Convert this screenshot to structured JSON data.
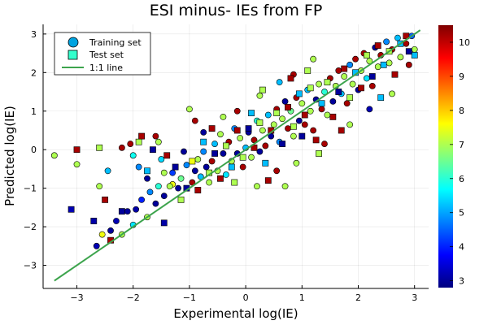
{
  "chart_data": {
    "type": "scatter",
    "title": "ESI minus- IEs from FP",
    "xlabel": "Experimental log(IE)",
    "ylabel": "Predicted log(IE)",
    "xlim": [
      -3.6,
      3.25
    ],
    "ylim": [
      -3.6,
      3.25
    ],
    "xticks": [
      -3,
      -2,
      -1,
      0,
      1,
      2,
      3
    ],
    "yticks": [
      -3,
      -2,
      -1,
      0,
      1,
      2,
      3
    ],
    "grid": true,
    "legend_position": "top-left",
    "colorbar": {
      "range": [
        2.8,
        10.5
      ],
      "ticks": [
        3,
        4,
        5,
        6,
        7,
        8,
        9,
        10
      ],
      "colormap": "jet"
    },
    "series": [
      {
        "name": "Training set",
        "marker": "circle",
        "points": [
          [
            -3.4,
            -0.15,
            7.0
          ],
          [
            -3.0,
            -0.38,
            7.0
          ],
          [
            -2.6,
            -0.95,
            7.0
          ],
          [
            -2.45,
            -0.55,
            5.2
          ],
          [
            -2.2,
            0.05,
            10.2
          ],
          [
            -2.05,
            0.15,
            10.2
          ],
          [
            -1.9,
            -0.45,
            4.8
          ],
          [
            -1.75,
            -0.75,
            3.0
          ],
          [
            -1.6,
            0.35,
            10.2
          ],
          [
            -1.5,
            -0.25,
            5.4
          ],
          [
            -1.45,
            -0.6,
            7.0
          ],
          [
            -1.3,
            -0.9,
            7.5
          ],
          [
            -2.65,
            -2.5,
            3.2
          ],
          [
            -2.55,
            -2.2,
            7.5
          ],
          [
            -2.4,
            -2.1,
            3.0
          ],
          [
            -2.3,
            -1.85,
            3.2
          ],
          [
            -2.2,
            -2.2,
            7.0
          ],
          [
            -2.1,
            -1.6,
            3.0
          ],
          [
            -2.0,
            -1.95,
            5.5
          ],
          [
            -1.95,
            -1.55,
            3.1
          ],
          [
            -1.85,
            -1.3,
            4.0
          ],
          [
            -1.75,
            -1.75,
            7.0
          ],
          [
            -1.7,
            -1.1,
            4.8
          ],
          [
            -1.6,
            -1.4,
            3.0
          ],
          [
            -1.55,
            -0.95,
            6.0
          ],
          [
            -1.45,
            -1.2,
            3.0
          ],
          [
            -1.35,
            -0.95,
            7.0
          ],
          [
            -1.3,
            -0.6,
            4.2
          ],
          [
            -1.2,
            -1.0,
            3.0
          ],
          [
            -1.15,
            -0.75,
            6.5
          ],
          [
            -1.05,
            -0.4,
            4.8
          ],
          [
            -0.95,
            -0.85,
            10.2
          ],
          [
            -0.9,
            -0.55,
            3.0
          ],
          [
            -0.85,
            -0.25,
            7.0
          ],
          [
            -0.8,
            -0.7,
            5.2
          ],
          [
            -0.75,
            -0.05,
            4.8
          ],
          [
            -0.7,
            -0.45,
            3.0
          ],
          [
            -0.65,
            -0.85,
            7.0
          ],
          [
            -0.6,
            -0.3,
            10.2
          ],
          [
            -0.55,
            0.15,
            5.2
          ],
          [
            -0.5,
            -0.55,
            7.0
          ],
          [
            -0.45,
            0.4,
            7.0
          ],
          [
            -0.4,
            -0.1,
            3.0
          ],
          [
            -0.35,
            -0.65,
            5.5
          ],
          [
            -0.3,
            0.2,
            10.2
          ],
          [
            -0.25,
            -0.3,
            7.0
          ],
          [
            -0.2,
            0.55,
            4.8
          ],
          [
            -0.15,
            -0.1,
            3.0
          ],
          [
            -0.1,
            0.3,
            7.0
          ],
          [
            -0.05,
            -0.45,
            10.2
          ],
          [
            0.0,
            0.05,
            5.2
          ],
          [
            0.05,
            0.45,
            3.0
          ],
          [
            0.1,
            -0.2,
            7.0
          ],
          [
            0.15,
            0.25,
            10.2
          ],
          [
            0.2,
            0.75,
            6.0
          ],
          [
            0.25,
            -0.05,
            3.0
          ],
          [
            0.3,
            0.5,
            7.0
          ],
          [
            0.35,
            0.1,
            10.2
          ],
          [
            0.4,
            0.9,
            5.2
          ],
          [
            0.45,
            0.35,
            3.0
          ],
          [
            0.5,
            0.65,
            7.0
          ],
          [
            0.55,
            1.05,
            10.2
          ],
          [
            0.6,
            0.2,
            4.8
          ],
          [
            0.65,
            0.8,
            7.0
          ],
          [
            0.7,
            1.25,
            3.0
          ],
          [
            0.75,
            0.55,
            10.2
          ],
          [
            0.8,
            1.0,
            6.5
          ],
          [
            0.85,
            0.35,
            7.0
          ],
          [
            0.9,
            1.35,
            10.2
          ],
          [
            0.95,
            0.75,
            3.0
          ],
          [
            1.0,
            1.2,
            7.0
          ],
          [
            1.05,
            0.65,
            10.2
          ],
          [
            1.1,
            1.55,
            5.2
          ],
          [
            1.15,
            1.0,
            7.0
          ],
          [
            1.2,
            0.5,
            10.2
          ],
          [
            1.25,
            1.3,
            3.0
          ],
          [
            1.3,
            1.7,
            7.0
          ],
          [
            1.35,
            1.05,
            10.2
          ],
          [
            1.4,
            1.5,
            6.0
          ],
          [
            1.45,
            0.9,
            7.0
          ],
          [
            1.5,
            1.85,
            10.2
          ],
          [
            1.55,
            1.25,
            3.0
          ],
          [
            1.6,
            1.65,
            7.0
          ],
          [
            1.65,
            2.05,
            10.2
          ],
          [
            1.7,
            1.45,
            5.2
          ],
          [
            1.75,
            1.9,
            7.0
          ],
          [
            1.8,
            1.2,
            10.2
          ],
          [
            1.85,
            2.2,
            4.8
          ],
          [
            1.9,
            1.7,
            7.0
          ],
          [
            1.95,
            2.35,
            10.2
          ],
          [
            2.0,
            1.55,
            3.0
          ],
          [
            2.05,
            2.05,
            7.0
          ],
          [
            2.1,
            2.5,
            10.2
          ],
          [
            2.15,
            1.85,
            5.5
          ],
          [
            2.2,
            2.3,
            7.0
          ],
          [
            2.25,
            1.65,
            10.2
          ],
          [
            2.3,
            2.65,
            3.0
          ],
          [
            2.35,
            2.15,
            7.0
          ],
          [
            2.4,
            2.45,
            10.2
          ],
          [
            2.5,
            2.8,
            4.8
          ],
          [
            2.55,
            2.25,
            7.0
          ],
          [
            2.6,
            2.6,
            10.2
          ],
          [
            2.7,
            2.9,
            5.2
          ],
          [
            2.75,
            2.4,
            7.0
          ],
          [
            2.85,
            2.75,
            10.2
          ],
          [
            2.95,
            2.95,
            4.5
          ],
          [
            3.0,
            2.6,
            7.0
          ],
          [
            -0.9,
            0.75,
            10.2
          ],
          [
            -0.4,
            0.85,
            7.0
          ],
          [
            -0.15,
            1.0,
            10.2
          ],
          [
            0.25,
            1.4,
            7.0
          ],
          [
            0.6,
            1.75,
            5.2
          ],
          [
            0.85,
            1.95,
            10.2
          ],
          [
            1.2,
            2.35,
            7.0
          ],
          [
            0.2,
            -0.95,
            7.0
          ],
          [
            0.55,
            -0.55,
            10.2
          ],
          [
            0.9,
            -0.35,
            7.0
          ],
          [
            1.4,
            0.15,
            10.2
          ],
          [
            1.85,
            0.65,
            7.0
          ],
          [
            2.2,
            1.05,
            3.2
          ],
          [
            -1.0,
            1.05,
            7.0
          ],
          [
            -1.55,
            0.2,
            7.0
          ],
          [
            -2.0,
            -0.15,
            5.8
          ],
          [
            -1.1,
            -0.05,
            3.0
          ],
          [
            0.7,
            -0.95,
            7.0
          ],
          [
            2.6,
            1.45,
            7.0
          ],
          [
            2.9,
            2.2,
            10.2
          ],
          [
            -0.75,
            0.45,
            3.0
          ]
        ]
      },
      {
        "name": "Test set",
        "marker": "square",
        "points": [
          [
            -3.1,
            -1.55,
            3.2
          ],
          [
            -3.0,
            0.0,
            10.2
          ],
          [
            -2.6,
            0.05,
            7.0
          ],
          [
            -2.5,
            -1.3,
            10.2
          ],
          [
            -2.7,
            -1.85,
            3.1
          ],
          [
            -2.4,
            -2.35,
            10.2
          ],
          [
            -2.2,
            -1.6,
            3.0
          ],
          [
            -1.9,
            0.2,
            7.0
          ],
          [
            -1.85,
            0.35,
            10.2
          ],
          [
            -1.75,
            -0.55,
            5.2
          ],
          [
            -1.65,
            0.0,
            3.0
          ],
          [
            -1.45,
            -1.9,
            3.1
          ],
          [
            -1.4,
            -0.15,
            10.2
          ],
          [
            -1.25,
            -0.45,
            3.0
          ],
          [
            -1.15,
            -1.3,
            7.0
          ],
          [
            -1.05,
            -1.0,
            3.0
          ],
          [
            -0.95,
            -0.3,
            7.5
          ],
          [
            -0.85,
            -1.05,
            10.2
          ],
          [
            -0.75,
            0.2,
            5.2
          ],
          [
            -0.65,
            -0.6,
            7.0
          ],
          [
            -0.55,
            -0.1,
            3.0
          ],
          [
            -0.45,
            -0.75,
            10.2
          ],
          [
            -0.35,
            0.1,
            7.0
          ],
          [
            -0.25,
            -0.45,
            5.2
          ],
          [
            -0.15,
            0.5,
            10.2
          ],
          [
            -0.05,
            -0.2,
            7.0
          ],
          [
            0.05,
            0.55,
            3.0
          ],
          [
            0.15,
            0.05,
            10.2
          ],
          [
            0.25,
            0.7,
            7.0
          ],
          [
            0.35,
            -0.35,
            5.2
          ],
          [
            0.45,
            0.5,
            10.2
          ],
          [
            0.55,
            0.95,
            7.0
          ],
          [
            0.65,
            0.15,
            3.0
          ],
          [
            0.75,
            1.1,
            10.2
          ],
          [
            0.85,
            0.6,
            7.0
          ],
          [
            0.95,
            1.45,
            5.2
          ],
          [
            1.05,
            0.9,
            10.2
          ],
          [
            1.15,
            1.6,
            7.0
          ],
          [
            1.25,
            0.25,
            10.2
          ],
          [
            1.35,
            1.2,
            5.2
          ],
          [
            1.45,
            1.75,
            7.0
          ],
          [
            1.55,
            0.85,
            10.2
          ],
          [
            1.65,
            1.5,
            3.0
          ],
          [
            1.75,
            2.1,
            10.2
          ],
          [
            1.85,
            1.35,
            7.0
          ],
          [
            1.95,
            2.0,
            5.2
          ],
          [
            2.05,
            1.6,
            10.2
          ],
          [
            2.15,
            2.45,
            7.0
          ],
          [
            2.25,
            1.9,
            3.0
          ],
          [
            2.35,
            2.7,
            10.2
          ],
          [
            2.45,
            2.2,
            5.2
          ],
          [
            2.55,
            2.55,
            7.0
          ],
          [
            2.65,
            1.95,
            10.2
          ],
          [
            2.75,
            2.75,
            5.2
          ],
          [
            2.85,
            2.95,
            10.2
          ],
          [
            3.0,
            2.45,
            5.2
          ],
          [
            -0.6,
            0.55,
            10.2
          ],
          [
            0.3,
            1.55,
            7.0
          ],
          [
            0.8,
            1.85,
            10.2
          ],
          [
            1.1,
            2.05,
            7.0
          ],
          [
            0.4,
            -0.8,
            10.2
          ],
          [
            1.3,
            -0.1,
            7.0
          ],
          [
            1.7,
            0.5,
            10.2
          ],
          [
            2.4,
            1.35,
            5.2
          ],
          [
            1.0,
            0.35,
            3.0
          ],
          [
            -0.2,
            -0.85,
            7.0
          ],
          [
            0.1,
            0.95,
            5.2
          ],
          [
            2.9,
            2.55,
            3.0
          ]
        ]
      },
      {
        "name": "1:1 line",
        "marker": "line",
        "color": "#3da44d",
        "points": [
          [
            -3.4,
            -3.4
          ],
          [
            3.1,
            3.1
          ]
        ]
      }
    ]
  }
}
